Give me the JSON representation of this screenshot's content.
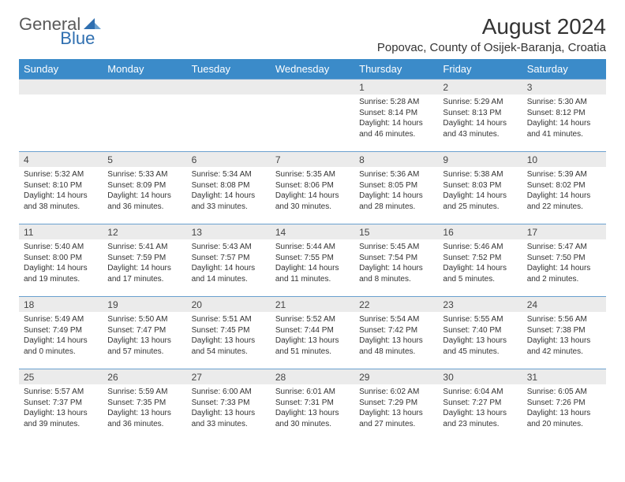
{
  "logo": {
    "text1": "General",
    "text2": "Blue"
  },
  "title": "August 2024",
  "location": "Popovac, County of Osijek-Baranja, Croatia",
  "days": [
    "Sunday",
    "Monday",
    "Tuesday",
    "Wednesday",
    "Thursday",
    "Friday",
    "Saturday"
  ],
  "colors": {
    "header_bg": "#3b8bc9",
    "header_text": "#ffffff",
    "daynum_bg": "#ebebeb",
    "rule": "#6aa0cf",
    "logo_gray": "#5a5a5a",
    "logo_blue": "#2f6fb0"
  },
  "cells": [
    {
      "n": "",
      "sr": "",
      "ss": "",
      "dl": ""
    },
    {
      "n": "",
      "sr": "",
      "ss": "",
      "dl": ""
    },
    {
      "n": "",
      "sr": "",
      "ss": "",
      "dl": ""
    },
    {
      "n": "",
      "sr": "",
      "ss": "",
      "dl": ""
    },
    {
      "n": "1",
      "sr": "Sunrise: 5:28 AM",
      "ss": "Sunset: 8:14 PM",
      "dl": "Daylight: 14 hours and 46 minutes."
    },
    {
      "n": "2",
      "sr": "Sunrise: 5:29 AM",
      "ss": "Sunset: 8:13 PM",
      "dl": "Daylight: 14 hours and 43 minutes."
    },
    {
      "n": "3",
      "sr": "Sunrise: 5:30 AM",
      "ss": "Sunset: 8:12 PM",
      "dl": "Daylight: 14 hours and 41 minutes."
    },
    {
      "n": "4",
      "sr": "Sunrise: 5:32 AM",
      "ss": "Sunset: 8:10 PM",
      "dl": "Daylight: 14 hours and 38 minutes."
    },
    {
      "n": "5",
      "sr": "Sunrise: 5:33 AM",
      "ss": "Sunset: 8:09 PM",
      "dl": "Daylight: 14 hours and 36 minutes."
    },
    {
      "n": "6",
      "sr": "Sunrise: 5:34 AM",
      "ss": "Sunset: 8:08 PM",
      "dl": "Daylight: 14 hours and 33 minutes."
    },
    {
      "n": "7",
      "sr": "Sunrise: 5:35 AM",
      "ss": "Sunset: 8:06 PM",
      "dl": "Daylight: 14 hours and 30 minutes."
    },
    {
      "n": "8",
      "sr": "Sunrise: 5:36 AM",
      "ss": "Sunset: 8:05 PM",
      "dl": "Daylight: 14 hours and 28 minutes."
    },
    {
      "n": "9",
      "sr": "Sunrise: 5:38 AM",
      "ss": "Sunset: 8:03 PM",
      "dl": "Daylight: 14 hours and 25 minutes."
    },
    {
      "n": "10",
      "sr": "Sunrise: 5:39 AM",
      "ss": "Sunset: 8:02 PM",
      "dl": "Daylight: 14 hours and 22 minutes."
    },
    {
      "n": "11",
      "sr": "Sunrise: 5:40 AM",
      "ss": "Sunset: 8:00 PM",
      "dl": "Daylight: 14 hours and 19 minutes."
    },
    {
      "n": "12",
      "sr": "Sunrise: 5:41 AM",
      "ss": "Sunset: 7:59 PM",
      "dl": "Daylight: 14 hours and 17 minutes."
    },
    {
      "n": "13",
      "sr": "Sunrise: 5:43 AM",
      "ss": "Sunset: 7:57 PM",
      "dl": "Daylight: 14 hours and 14 minutes."
    },
    {
      "n": "14",
      "sr": "Sunrise: 5:44 AM",
      "ss": "Sunset: 7:55 PM",
      "dl": "Daylight: 14 hours and 11 minutes."
    },
    {
      "n": "15",
      "sr": "Sunrise: 5:45 AM",
      "ss": "Sunset: 7:54 PM",
      "dl": "Daylight: 14 hours and 8 minutes."
    },
    {
      "n": "16",
      "sr": "Sunrise: 5:46 AM",
      "ss": "Sunset: 7:52 PM",
      "dl": "Daylight: 14 hours and 5 minutes."
    },
    {
      "n": "17",
      "sr": "Sunrise: 5:47 AM",
      "ss": "Sunset: 7:50 PM",
      "dl": "Daylight: 14 hours and 2 minutes."
    },
    {
      "n": "18",
      "sr": "Sunrise: 5:49 AM",
      "ss": "Sunset: 7:49 PM",
      "dl": "Daylight: 14 hours and 0 minutes."
    },
    {
      "n": "19",
      "sr": "Sunrise: 5:50 AM",
      "ss": "Sunset: 7:47 PM",
      "dl": "Daylight: 13 hours and 57 minutes."
    },
    {
      "n": "20",
      "sr": "Sunrise: 5:51 AM",
      "ss": "Sunset: 7:45 PM",
      "dl": "Daylight: 13 hours and 54 minutes."
    },
    {
      "n": "21",
      "sr": "Sunrise: 5:52 AM",
      "ss": "Sunset: 7:44 PM",
      "dl": "Daylight: 13 hours and 51 minutes."
    },
    {
      "n": "22",
      "sr": "Sunrise: 5:54 AM",
      "ss": "Sunset: 7:42 PM",
      "dl": "Daylight: 13 hours and 48 minutes."
    },
    {
      "n": "23",
      "sr": "Sunrise: 5:55 AM",
      "ss": "Sunset: 7:40 PM",
      "dl": "Daylight: 13 hours and 45 minutes."
    },
    {
      "n": "24",
      "sr": "Sunrise: 5:56 AM",
      "ss": "Sunset: 7:38 PM",
      "dl": "Daylight: 13 hours and 42 minutes."
    },
    {
      "n": "25",
      "sr": "Sunrise: 5:57 AM",
      "ss": "Sunset: 7:37 PM",
      "dl": "Daylight: 13 hours and 39 minutes."
    },
    {
      "n": "26",
      "sr": "Sunrise: 5:59 AM",
      "ss": "Sunset: 7:35 PM",
      "dl": "Daylight: 13 hours and 36 minutes."
    },
    {
      "n": "27",
      "sr": "Sunrise: 6:00 AM",
      "ss": "Sunset: 7:33 PM",
      "dl": "Daylight: 13 hours and 33 minutes."
    },
    {
      "n": "28",
      "sr": "Sunrise: 6:01 AM",
      "ss": "Sunset: 7:31 PM",
      "dl": "Daylight: 13 hours and 30 minutes."
    },
    {
      "n": "29",
      "sr": "Sunrise: 6:02 AM",
      "ss": "Sunset: 7:29 PM",
      "dl": "Daylight: 13 hours and 27 minutes."
    },
    {
      "n": "30",
      "sr": "Sunrise: 6:04 AM",
      "ss": "Sunset: 7:27 PM",
      "dl": "Daylight: 13 hours and 23 minutes."
    },
    {
      "n": "31",
      "sr": "Sunrise: 6:05 AM",
      "ss": "Sunset: 7:26 PM",
      "dl": "Daylight: 13 hours and 20 minutes."
    }
  ]
}
